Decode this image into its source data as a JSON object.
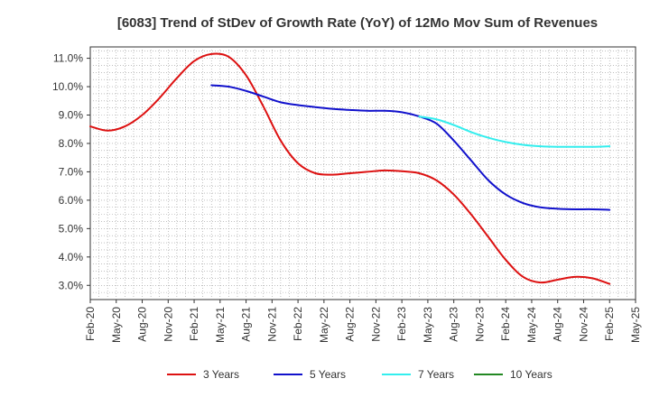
{
  "chart_data": {
    "type": "line",
    "title": "[6083]  Trend of StDev of Growth Rate (YoY) of 12Mo Mov Sum of Revenues",
    "xlabel": "",
    "ylabel": "",
    "x_tick_labels": [
      "Feb-20",
      "May-20",
      "Aug-20",
      "Nov-20",
      "Feb-21",
      "May-21",
      "Aug-21",
      "Nov-21",
      "Feb-22",
      "May-22",
      "Aug-22",
      "Nov-22",
      "Feb-23",
      "May-23",
      "Aug-23",
      "Nov-23",
      "Feb-24",
      "May-24",
      "Aug-24",
      "Nov-24",
      "Feb-25",
      "May-25"
    ],
    "y_ticks": [
      3.0,
      4.0,
      5.0,
      6.0,
      7.0,
      8.0,
      9.0,
      10.0,
      11.0
    ],
    "y_tick_labels": [
      "3.0%",
      "4.0%",
      "5.0%",
      "6.0%",
      "7.0%",
      "8.0%",
      "9.0%",
      "10.0%",
      "11.0%"
    ],
    "ylim": [
      2.5,
      11.4
    ],
    "x_range_months": [
      0,
      63
    ],
    "grid": true,
    "legend_position": "bottom",
    "series": [
      {
        "name": "3 Years",
        "color": "#dd1111",
        "x": [
          0,
          2,
          4,
          6,
          8,
          10,
          12,
          14,
          16,
          18,
          20,
          22,
          24,
          26,
          28,
          30,
          32,
          34,
          36,
          38,
          40,
          42,
          44,
          46,
          48,
          50,
          52,
          54,
          56,
          58,
          60
        ],
        "values": [
          8.6,
          8.45,
          8.6,
          9.0,
          9.6,
          10.3,
          10.9,
          11.15,
          11.05,
          10.4,
          9.3,
          8.1,
          7.3,
          6.95,
          6.9,
          6.95,
          7.0,
          7.05,
          7.02,
          6.95,
          6.7,
          6.2,
          5.5,
          4.7,
          3.9,
          3.3,
          3.1,
          3.2,
          3.3,
          3.25,
          3.05
        ]
      },
      {
        "name": "5 Years",
        "color": "#1111cc",
        "x": [
          14,
          16,
          18,
          20,
          22,
          24,
          26,
          28,
          30,
          32,
          34,
          36,
          38,
          40,
          42,
          44,
          46,
          48,
          50,
          52,
          54,
          56,
          58,
          60
        ],
        "values": [
          10.05,
          10.0,
          9.85,
          9.65,
          9.45,
          9.35,
          9.28,
          9.22,
          9.18,
          9.15,
          9.15,
          9.1,
          8.95,
          8.7,
          8.1,
          7.4,
          6.7,
          6.2,
          5.9,
          5.75,
          5.7,
          5.68,
          5.68,
          5.66
        ]
      },
      {
        "name": "7 Years",
        "color": "#33eeee",
        "x": [
          38,
          40,
          42,
          44,
          46,
          48,
          50,
          52,
          54,
          56,
          58,
          60
        ],
        "values": [
          8.95,
          8.85,
          8.65,
          8.4,
          8.2,
          8.05,
          7.95,
          7.9,
          7.88,
          7.88,
          7.88,
          7.9
        ]
      },
      {
        "name": "10 Years",
        "color": "#228822",
        "x": [],
        "values": []
      }
    ]
  }
}
